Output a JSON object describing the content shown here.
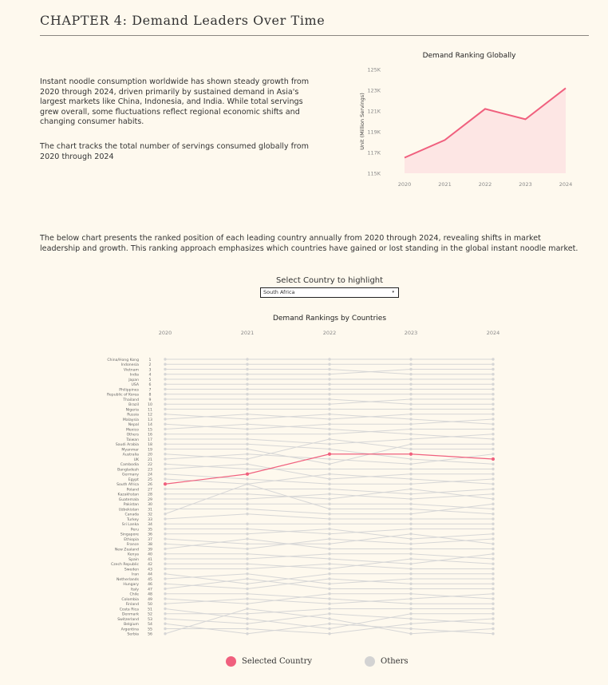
{
  "header": {
    "title": "CHAPTER 4:  Demand Leaders Over Time"
  },
  "intro": {
    "paragraph1": "Instant noodle consumption worldwide has shown steady growth from 2020 through 2024, driven primarily by sustained demand in Asia's largest markets like China, Indonesia, and India. While total servings grew overall, some fluctuations reflect regional economic shifts and changing consumer habits.",
    "paragraph2": "The chart tracks the total number of servings consumed globally from 2020 through 2024"
  },
  "description": "The below chart presents the ranked position of each leading country annually from 2020 through 2024, revealing shifts in market leadership and growth. This ranking approach emphasizes which countries have gained or lost standing in the global instant noodle market.",
  "selector": {
    "label": "Select Country to highlight",
    "value": "South Africa",
    "caret_icon": "▾"
  },
  "legend": {
    "selected_label": "Selected Country",
    "others_label": "Others",
    "selected_color": "#F0607E",
    "others_color": "#D3D3D3"
  },
  "colors": {
    "background": "#FEF9EE",
    "accent": "#F0607E",
    "area_fill": "#FDE6E4",
    "gray_line": "#D6D6D6"
  },
  "chart_data": [
    {
      "type": "area",
      "title": "Demand Ranking Globally",
      "xlabel": "",
      "ylabel": "Unit (Million Servings)",
      "x": [
        "2020",
        "2021",
        "2022",
        "2023",
        "2024"
      ],
      "values": [
        116.5,
        118.2,
        121.2,
        120.2,
        123.2
      ],
      "y_ticks": [
        "115K",
        "117K",
        "119K",
        "121K",
        "123K",
        "125K"
      ],
      "ylim": [
        115,
        125
      ],
      "grid": false
    },
    {
      "type": "line",
      "subtype": "bump",
      "title": "Demand Rankings by Countries",
      "x": [
        "2020",
        "2021",
        "2022",
        "2023",
        "2024"
      ],
      "highlighted": "South Africa",
      "row_labels": [
        "China/Hong Kong",
        "Indonesia",
        "Vietnam",
        "India",
        "Japan",
        "USA",
        "Philippines",
        "Republic of Korea",
        "Thailand",
        "Brazil",
        "Nigeria",
        "Russia",
        "Malaysia",
        "Nepal",
        "Mexico",
        "Others",
        "Taiwan",
        "Saudi Arabia",
        "Myanmar",
        "Australia",
        "UK",
        "Cambodia",
        "Bangladesh",
        "Germany",
        "Egypt",
        "South Africa",
        "Poland",
        "Kazakhstan",
        "Guatemala",
        "Pakistan",
        "Uzbekistan",
        "Canada",
        "Turkey",
        "Sri Lanka",
        "Peru",
        "Singapore",
        "Ethiopia",
        "France",
        "New Zealand",
        "Kenya",
        "Spain",
        "Czech Republic",
        "Sweden",
        "Iran",
        "Netherlands",
        "Hungary",
        "Italy",
        "Chile",
        "Colombia",
        "Finland",
        "Costa Rica",
        "Denmark",
        "Switzerland",
        "Belgium",
        "Argentina",
        "Serbia"
      ],
      "series": [
        {
          "name": "China/Hong Kong",
          "ranks": [
            1,
            1,
            1,
            1,
            1
          ]
        },
        {
          "name": "Indonesia",
          "ranks": [
            2,
            2,
            2,
            2,
            2
          ]
        },
        {
          "name": "Vietnam",
          "ranks": [
            3,
            3,
            3,
            4,
            4
          ]
        },
        {
          "name": "India",
          "ranks": [
            4,
            4,
            4,
            3,
            3
          ]
        },
        {
          "name": "Japan",
          "ranks": [
            5,
            5,
            5,
            5,
            5
          ]
        },
        {
          "name": "USA",
          "ranks": [
            6,
            6,
            6,
            6,
            6
          ]
        },
        {
          "name": "Philippines",
          "ranks": [
            7,
            7,
            7,
            7,
            7
          ]
        },
        {
          "name": "Republic of Korea",
          "ranks": [
            8,
            8,
            8,
            8,
            8
          ]
        },
        {
          "name": "Thailand",
          "ranks": [
            9,
            9,
            9,
            10,
            10
          ]
        },
        {
          "name": "Brazil",
          "ranks": [
            10,
            10,
            10,
            9,
            9
          ]
        },
        {
          "name": "Nigeria",
          "ranks": [
            11,
            11,
            11,
            11,
            11
          ]
        },
        {
          "name": "Russia",
          "ranks": [
            12,
            13,
            12,
            13,
            14
          ]
        },
        {
          "name": "Malaysia",
          "ranks": [
            13,
            12,
            13,
            12,
            12
          ]
        },
        {
          "name": "Nepal",
          "ranks": [
            14,
            15,
            14,
            14,
            13
          ]
        },
        {
          "name": "Mexico",
          "ranks": [
            15,
            14,
            15,
            16,
            17
          ]
        },
        {
          "name": "Others",
          "ranks": [
            16,
            16,
            16,
            15,
            15
          ]
        },
        {
          "name": "Taiwan",
          "ranks": [
            17,
            17,
            18,
            17,
            16
          ]
        },
        {
          "name": "Saudi Arabia",
          "ranks": [
            18,
            18,
            19,
            21,
            22
          ]
        },
        {
          "name": "Myanmar",
          "ranks": [
            19,
            19,
            22,
            18,
            18
          ]
        },
        {
          "name": "Australia",
          "ranks": [
            20,
            21,
            17,
            19,
            19
          ]
        },
        {
          "name": "UK",
          "ranks": [
            21,
            20,
            21,
            22,
            20
          ]
        },
        {
          "name": "Cambodia",
          "ranks": [
            22,
            23,
            23,
            23,
            23
          ]
        },
        {
          "name": "Bangladesh",
          "ranks": [
            23,
            22,
            25,
            24,
            24
          ]
        },
        {
          "name": "Germany",
          "ranks": [
            24,
            25,
            26,
            26,
            25
          ]
        },
        {
          "name": "Egypt",
          "ranks": [
            25,
            26,
            24,
            25,
            26
          ]
        },
        {
          "name": "South Africa",
          "ranks": [
            26,
            24,
            20,
            20,
            21
          ]
        },
        {
          "name": "Poland",
          "ranks": [
            27,
            27,
            27,
            28,
            27
          ]
        },
        {
          "name": "Kazakhstan",
          "ranks": [
            28,
            28,
            29,
            27,
            29
          ]
        },
        {
          "name": "Guatemala",
          "ranks": [
            29,
            29,
            28,
            29,
            28
          ]
        },
        {
          "name": "Pakistan",
          "ranks": [
            30,
            30,
            30,
            30,
            31
          ]
        },
        {
          "name": "Uzbekistan",
          "ranks": [
            31,
            31,
            32,
            32,
            30
          ]
        },
        {
          "name": "Canada",
          "ranks": [
            32,
            26,
            31,
            31,
            32
          ]
        },
        {
          "name": "Turkey",
          "ranks": [
            33,
            32,
            33,
            33,
            33
          ]
        },
        {
          "name": "Sri Lanka",
          "ranks": [
            34,
            34,
            34,
            34,
            34
          ]
        },
        {
          "name": "Peru",
          "ranks": [
            35,
            35,
            36,
            35,
            35
          ]
        },
        {
          "name": "Singapore",
          "ranks": [
            36,
            36,
            35,
            37,
            36
          ]
        },
        {
          "name": "Ethiopia",
          "ranks": [
            37,
            38,
            38,
            36,
            38
          ]
        },
        {
          "name": "France",
          "ranks": [
            38,
            39,
            37,
            38,
            37
          ]
        },
        {
          "name": "New Zealand",
          "ranks": [
            39,
            37,
            39,
            39,
            39
          ]
        },
        {
          "name": "Kenya",
          "ranks": [
            40,
            40,
            41,
            42,
            40
          ]
        },
        {
          "name": "Spain",
          "ranks": [
            41,
            41,
            40,
            40,
            41
          ]
        },
        {
          "name": "Czech Republic",
          "ranks": [
            42,
            42,
            43,
            41,
            42
          ]
        },
        {
          "name": "Sweden",
          "ranks": [
            43,
            43,
            42,
            43,
            43
          ]
        },
        {
          "name": "Iran",
          "ranks": [
            44,
            46,
            44,
            44,
            44
          ]
        },
        {
          "name": "Netherlands",
          "ranks": [
            45,
            44,
            46,
            45,
            45
          ]
        },
        {
          "name": "Hungary",
          "ranks": [
            46,
            47,
            45,
            46,
            46
          ]
        },
        {
          "name": "Italy",
          "ranks": [
            47,
            45,
            47,
            47,
            47
          ]
        },
        {
          "name": "Chile",
          "ranks": [
            48,
            48,
            49,
            50,
            50
          ]
        },
        {
          "name": "Colombia",
          "ranks": [
            49,
            50,
            48,
            48,
            49
          ]
        },
        {
          "name": "Finland",
          "ranks": [
            50,
            49,
            50,
            49,
            48
          ]
        },
        {
          "name": "Costa Rica",
          "ranks": [
            51,
            53,
            55,
            52,
            52
          ]
        },
        {
          "name": "Denmark",
          "ranks": [
            52,
            52,
            51,
            51,
            51
          ]
        },
        {
          "name": "Switzerland",
          "ranks": [
            53,
            54,
            52,
            53,
            54
          ]
        },
        {
          "name": "Belgium",
          "ranks": [
            54,
            56,
            54,
            55,
            56
          ]
        },
        {
          "name": "Argentina",
          "ranks": [
            55,
            55,
            56,
            54,
            53
          ]
        },
        {
          "name": "Serbia",
          "ranks": [
            56,
            51,
            53,
            56,
            55
          ]
        }
      ],
      "y_range": [
        1,
        56
      ]
    }
  ]
}
